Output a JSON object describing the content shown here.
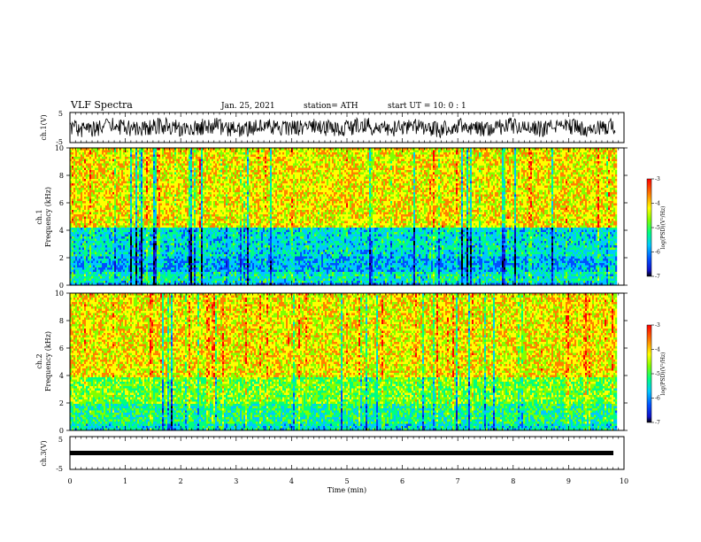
{
  "header": {
    "title": "VLF Spectra",
    "date": "Jan. 25, 2021",
    "station": "station= ATH",
    "start_ut": "start  UT  =   10: 0  : 1"
  },
  "colors": {
    "colormap": [
      "#000000",
      "#1010c8",
      "#0050ff",
      "#00c8ff",
      "#00ff80",
      "#80ff00",
      "#ffff00",
      "#ff8000",
      "#ff0000"
    ],
    "trace": "#000000"
  },
  "chart_data": [
    {
      "type": "line",
      "ylabel": "ch.1(V)",
      "ylim": [
        -5,
        5
      ],
      "yticks": [
        "5",
        "-5"
      ],
      "xlim": [
        0,
        10
      ],
      "note_values": "noisy waveform oscillating roughly between -3 and +3 V over the whole interval"
    },
    {
      "type": "heatmap",
      "ylabel": "ch.1",
      "ylabel2": "Frequency  (kHz)",
      "ylim": [
        0,
        10
      ],
      "yticks": [
        "0",
        "2",
        "4",
        "6",
        "8",
        "10"
      ],
      "xlim": [
        0,
        10
      ],
      "colorbar": {
        "label": "log(PSD)(V²/Hz)",
        "ticks": [
          "-3",
          "-4",
          "-5",
          "-6",
          "-7"
        ],
        "range": [
          -7,
          -3
        ]
      },
      "bands": [
        {
          "f_kHz": [
            0,
            0.3
          ],
          "logPSD": -5.8
        },
        {
          "f_kHz": [
            0.3,
            1.0
          ],
          "logPSD": -5.2
        },
        {
          "f_kHz": [
            1.0,
            2.2
          ],
          "logPSD": -5.6
        },
        {
          "f_kHz": [
            2.2,
            4.3
          ],
          "logPSD": -5.3
        },
        {
          "f_kHz": [
            4.3,
            10
          ],
          "logPSD": -4.0
        }
      ]
    },
    {
      "type": "heatmap",
      "ylabel": "ch.2",
      "ylabel2": "Frequency  (kHz)",
      "ylim": [
        0,
        10
      ],
      "yticks": [
        "0",
        "2",
        "4",
        "6",
        "8",
        "10"
      ],
      "xlim": [
        0,
        10
      ],
      "colorbar": {
        "label": "log(PSD)(V²/Hz)",
        "ticks": [
          "-3",
          "-4",
          "-5",
          "-6",
          "-7"
        ],
        "range": [
          -7,
          -3
        ]
      },
      "bands": [
        {
          "f_kHz": [
            0,
            0.5
          ],
          "logPSD": -5.3
        },
        {
          "f_kHz": [
            0.5,
            2.0
          ],
          "logPSD": -5.0
        },
        {
          "f_kHz": [
            2.0,
            4.0
          ],
          "logPSD": -4.6
        },
        {
          "f_kHz": [
            4.0,
            10
          ],
          "logPSD": -4.0
        }
      ]
    },
    {
      "type": "line",
      "ylabel": "ch.3(V)",
      "ylim": [
        -5,
        5
      ],
      "yticks": [
        "5",
        "-5"
      ],
      "xlim": [
        0,
        10
      ],
      "xlabel": "Time  (min)",
      "xticks": [
        "0",
        "1",
        "2",
        "3",
        "4",
        "5",
        "6",
        "7",
        "8",
        "9",
        "10"
      ],
      "note_values": "nearly constant thick trace near 0 V from 0 to about 9.8 min"
    }
  ]
}
